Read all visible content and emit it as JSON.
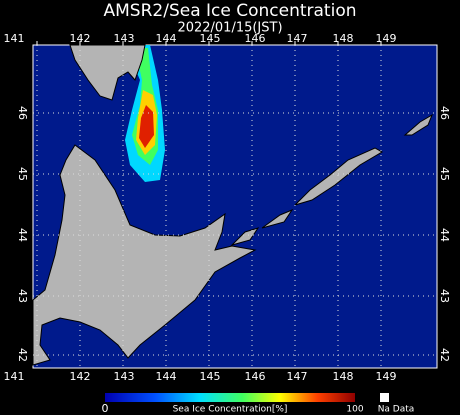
{
  "header": {
    "title": "AMSR2/Sea Ice Concentration",
    "date": "2022/01/15(JST)"
  },
  "map": {
    "lon_labels_top": [
      141,
      142,
      143,
      144,
      145,
      146,
      147,
      148,
      149
    ],
    "lon_labels_bottom": [
      141,
      142,
      143,
      144,
      145,
      146,
      147,
      148,
      149
    ],
    "lat_labels_left": [
      46,
      45,
      44,
      43,
      42
    ],
    "lat_labels_right": [
      46,
      45,
      44,
      43,
      42
    ]
  },
  "legend": {
    "min": 0,
    "label": "Sea Ice Concentration[%]",
    "max": 100,
    "no_data": "Na Data"
  }
}
